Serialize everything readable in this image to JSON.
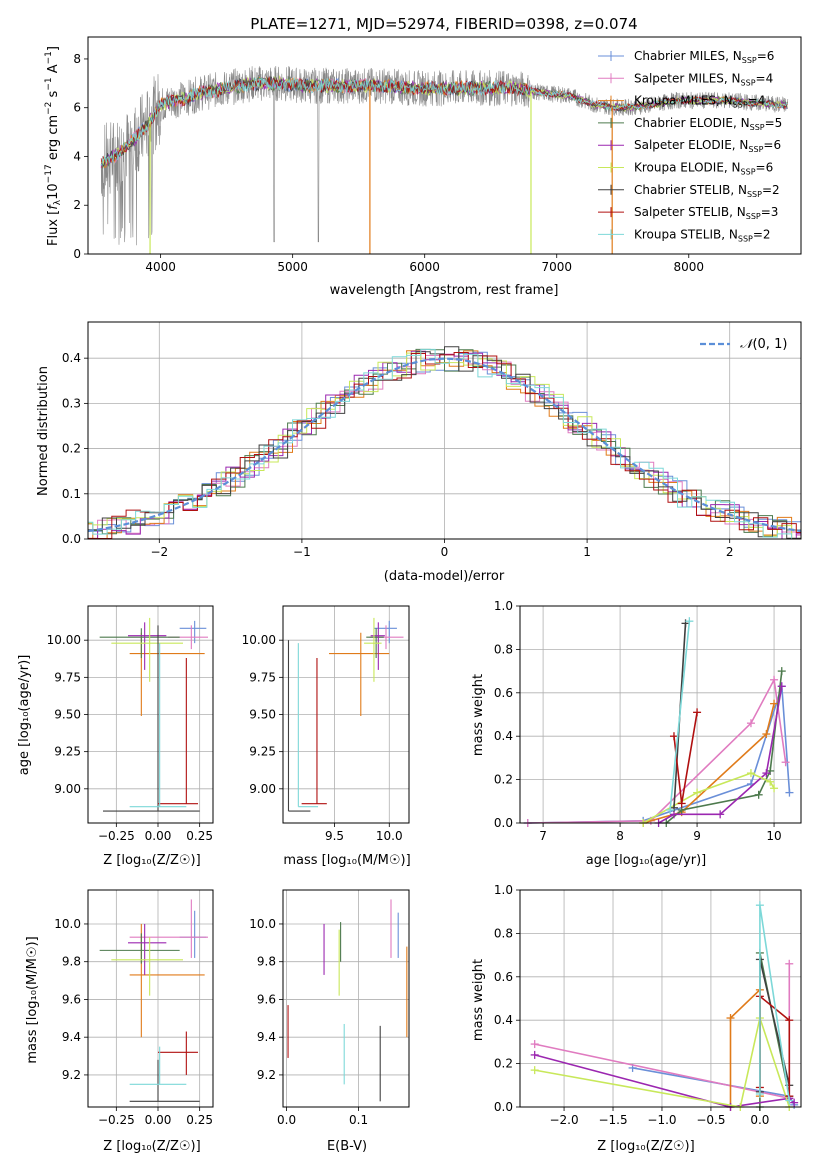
{
  "colors": {
    "chabrier_miles": "#6a8fd8",
    "salpeter_miles": "#e07bc0",
    "kroupa_miles": "#e07b1a",
    "chabrier_elodie": "#4d7a4d",
    "salpeter_elodie": "#9b27b0",
    "kroupa_elodie": "#c8e85a",
    "chabrier_stelib": "#404040",
    "salpeter_stelib": "#b01010",
    "kroupa_stelib": "#7dd8d8",
    "data_grey": "#888888",
    "normal_dash": "#5b8fd8"
  },
  "chart_data": [
    {
      "id": "spectrum",
      "type": "line",
      "title": "PLATE=1271, MJD=52974, FIBERID=0398, z=0.074",
      "xlabel": "wavelength [Angstrom, rest frame]",
      "ylabel": "Flux [fλ10⁻¹⁷ erg cm⁻² s⁻¹ A⁻¹]",
      "xlim": [
        3450,
        8850
      ],
      "ylim": [
        0,
        8.9
      ],
      "xticks": [
        "4000",
        "5000",
        "6000",
        "7000",
        "8000"
      ],
      "yticks": [
        "0",
        "2",
        "4",
        "6",
        "8"
      ],
      "grid": false,
      "legend_position": "top-right",
      "legend": [
        {
          "key": "chabrier_miles",
          "label": "Chabrier MILES, N",
          "sub": "SSP",
          "suffix": "=6"
        },
        {
          "key": "salpeter_miles",
          "label": "Salpeter MILES, N",
          "sub": "SSP",
          "suffix": "=4"
        },
        {
          "key": "kroupa_miles",
          "label": "Kroupa MILES, N",
          "sub": "SSP",
          "suffix": "=4"
        },
        {
          "key": "chabrier_elodie",
          "label": "Chabrier ELODIE, N",
          "sub": "SSP",
          "suffix": "=5"
        },
        {
          "key": "salpeter_elodie",
          "label": "Salpeter ELODIE, N",
          "sub": "SSP",
          "suffix": "=6"
        },
        {
          "key": "kroupa_elodie",
          "label": "Kroupa ELODIE, N",
          "sub": "SSP",
          "suffix": "=6"
        },
        {
          "key": "chabrier_stelib",
          "label": "Chabrier STELIB, N",
          "sub": "SSP",
          "suffix": "=2"
        },
        {
          "key": "salpeter_stelib",
          "label": "Salpeter STELIB, N",
          "sub": "SSP",
          "suffix": "=3"
        },
        {
          "key": "kroupa_stelib",
          "label": "Kroupa STELIB, N",
          "sub": "SSP",
          "suffix": "=2"
        }
      ],
      "continuum": {
        "x": [
          3550,
          3700,
          3800,
          3900,
          4000,
          4100,
          4200,
          4300,
          4500,
          4700,
          4900,
          5100,
          5300,
          5500,
          5700,
          5900,
          6100,
          6300,
          6500,
          6700,
          6900,
          7100,
          7300,
          7500,
          7700,
          7900,
          8100,
          8300,
          8500,
          8750
        ],
        "y": [
          3.7,
          4.2,
          4.7,
          5.3,
          6.1,
          6.3,
          6.4,
          6.6,
          6.8,
          7.0,
          7.0,
          6.9,
          6.9,
          6.9,
          6.9,
          6.8,
          6.8,
          6.8,
          6.8,
          6.8,
          6.6,
          6.5,
          6.1,
          6.0,
          6.1,
          6.3,
          6.3,
          6.3,
          6.2,
          6.1
        ]
      }
    },
    {
      "id": "residuals",
      "type": "histogram",
      "xlabel": "(data-model)/error",
      "ylabel": "Normed distribution",
      "xlim": [
        -2.5,
        2.5
      ],
      "ylim": [
        0,
        0.48
      ],
      "xticks": [
        "-2",
        "-1",
        "0",
        "1",
        "2"
      ],
      "yticks": [
        "0.0",
        "0.1",
        "0.2",
        "0.3",
        "0.4"
      ],
      "grid": true,
      "legend_position": "top-right",
      "legend_label": "N(0,1)",
      "series_order": [
        "chabrier_miles",
        "salpeter_miles",
        "kroupa_miles",
        "chabrier_elodie",
        "salpeter_elodie",
        "kroupa_elodie",
        "chabrier_stelib",
        "salpeter_stelib",
        "kroupa_stelib"
      ]
    },
    {
      "id": "age_vs_Z",
      "type": "errorbar",
      "xlabel": "Z [log₁₀(Z/Z☉)]",
      "ylabel": "age  [log₁₀(age/yr)]",
      "xlim": [
        -0.42,
        0.33
      ],
      "ylim": [
        8.77,
        10.23
      ],
      "xticks": [
        "-0.25",
        "0.00",
        "0.25"
      ],
      "yticks": [
        "9.00",
        "9.25",
        "9.50",
        "9.75",
        "10.00"
      ],
      "grid": true,
      "points": [
        {
          "s": "chabrier_miles",
          "x": 0.22,
          "y": 10.08,
          "xe": [
            0.13,
            0.29
          ],
          "ye": [
            9.98,
            10.13
          ]
        },
        {
          "s": "salpeter_miles",
          "x": 0.2,
          "y": 10.02,
          "xe": [
            0.06,
            0.3
          ],
          "ye": [
            9.94,
            10.1
          ]
        },
        {
          "s": "kroupa_miles",
          "x": -0.1,
          "y": 9.91,
          "xe": [
            -0.17,
            0.28
          ],
          "ye": [
            9.49,
            10.05
          ]
        },
        {
          "s": "chabrier_elodie",
          "x": -0.1,
          "y": 10.02,
          "xe": [
            -0.35,
            0.13
          ],
          "ye": [
            9.88,
            10.08
          ]
        },
        {
          "s": "salpeter_elodie",
          "x": -0.08,
          "y": 10.03,
          "xe": [
            -0.18,
            0.05
          ],
          "ye": [
            9.8,
            10.12
          ]
        },
        {
          "s": "kroupa_elodie",
          "x": -0.05,
          "y": 9.98,
          "xe": [
            -0.28,
            0.15
          ],
          "ye": [
            9.72,
            10.15
          ]
        },
        {
          "s": "chabrier_stelib",
          "x": 0.0,
          "y": 8.85,
          "xe": [
            -0.33,
            0.25
          ],
          "ye": [
            8.85,
            10.1
          ]
        },
        {
          "s": "salpeter_stelib",
          "x": 0.17,
          "y": 8.9,
          "xe": [
            0.0,
            0.24
          ],
          "ye": [
            8.9,
            9.88
          ]
        },
        {
          "s": "kroupa_stelib",
          "x": 0.01,
          "y": 8.88,
          "xe": [
            -0.17,
            0.17
          ],
          "ye": [
            8.88,
            9.98
          ]
        }
      ]
    },
    {
      "id": "age_vs_mass",
      "type": "errorbar",
      "xlabel": "mass [log₁₀(M/M☉)]",
      "ylabel": "",
      "xlim": [
        9.03,
        10.18
      ],
      "ylim": [
        8.77,
        10.23
      ],
      "xticks": [
        "9.5",
        "10.0"
      ],
      "yticks": [
        "9.00",
        "9.25",
        "9.50",
        "9.75",
        "10.00"
      ],
      "grid": true,
      "points": [
        {
          "s": "chabrier_miles",
          "x": 10.0,
          "y": 10.08,
          "xe": [
            9.86,
            10.07
          ],
          "ye": [
            9.98,
            10.13
          ]
        },
        {
          "s": "salpeter_miles",
          "x": 9.97,
          "y": 10.02,
          "xe": [
            9.82,
            10.13
          ],
          "ye": [
            9.94,
            10.1
          ]
        },
        {
          "s": "kroupa_miles",
          "x": 9.74,
          "y": 9.91,
          "xe": [
            9.45,
            10.0
          ],
          "ye": [
            9.49,
            10.05
          ]
        },
        {
          "s": "chabrier_elodie",
          "x": 9.88,
          "y": 10.02,
          "xe": [
            9.79,
            9.95
          ],
          "ye": [
            9.88,
            10.08
          ]
        },
        {
          "s": "salpeter_elodie",
          "x": 9.9,
          "y": 10.03,
          "xe": [
            9.83,
            9.96
          ],
          "ye": [
            9.8,
            10.12
          ]
        },
        {
          "s": "kroupa_elodie",
          "x": 9.86,
          "y": 9.98,
          "xe": [
            9.77,
            9.93
          ],
          "ye": [
            9.72,
            10.15
          ]
        },
        {
          "s": "chabrier_stelib",
          "x": 9.08,
          "y": 8.85,
          "xe": [
            9.08,
            9.28
          ],
          "ye": [
            8.85,
            10.0
          ]
        },
        {
          "s": "salpeter_stelib",
          "x": 9.34,
          "y": 8.9,
          "xe": [
            9.2,
            9.43
          ],
          "ye": [
            8.9,
            9.88
          ]
        },
        {
          "s": "kroupa_stelib",
          "x": 9.17,
          "y": 8.88,
          "xe": [
            9.17,
            9.35
          ],
          "ye": [
            8.88,
            9.98
          ]
        }
      ]
    },
    {
      "id": "massweight_vs_age",
      "type": "line",
      "xlabel": "age  [log₁₀(age/yr)]",
      "ylabel": "mass weight",
      "xlim": [
        6.7,
        10.35
      ],
      "ylim": [
        0,
        1.0
      ],
      "xticks": [
        "7",
        "8",
        "9",
        "10"
      ],
      "yticks": [
        "0.0",
        "0.2",
        "0.4",
        "0.6",
        "0.8",
        "1.0"
      ],
      "grid": true,
      "series": [
        {
          "s": "chabrier_miles",
          "x": [
            6.8,
            8.3,
            9.7,
            10.1,
            10.2
          ],
          "y": [
            0.0,
            0.01,
            0.18,
            0.63,
            0.14
          ]
        },
        {
          "s": "salpeter_miles",
          "x": 6.8,
          "x_list": [
            6.8,
            8.4,
            9.7,
            10.0,
            10.15
          ],
          "y": [
            0.0,
            0.01,
            0.46,
            0.66,
            0.28
          ]
        },
        {
          "s": "kroupa_miles",
          "x": [
            8.3,
            8.8,
            9.9,
            10.0
          ],
          "y": [
            0.0,
            0.05,
            0.41,
            0.55
          ]
        },
        {
          "s": "chabrier_elodie",
          "x": [
            8.6,
            8.8,
            9.8,
            9.95,
            10.1
          ],
          "y": [
            0.0,
            0.06,
            0.13,
            0.24,
            0.7
          ]
        },
        {
          "s": "salpeter_elodie",
          "x": [
            8.5,
            8.7,
            9.3,
            9.9,
            10.1
          ],
          "y": [
            0.0,
            0.04,
            0.04,
            0.23,
            0.63
          ]
        },
        {
          "s": "kroupa_elodie",
          "x": [
            8.3,
            9.0,
            9.7,
            9.95,
            10.0
          ],
          "y": [
            0.0,
            0.14,
            0.23,
            0.19,
            0.16
          ]
        },
        {
          "s": "chabrier_stelib",
          "x": [
            8.7,
            8.85
          ],
          "y": [
            0.07,
            0.92
          ]
        },
        {
          "s": "salpeter_stelib",
          "x": [
            8.7,
            8.8,
            9.0
          ],
          "y": [
            0.4,
            0.09,
            0.51
          ]
        },
        {
          "s": "kroupa_stelib",
          "x": [
            8.65,
            8.9
          ],
          "y": [
            0.06,
            0.93
          ]
        }
      ]
    },
    {
      "id": "mass_vs_Z",
      "type": "errorbar",
      "xlabel": "Z [log₁₀(Z/Z☉)]",
      "ylabel": "mass [log₁₀(M/M☉)]",
      "xlim": [
        -0.42,
        0.33
      ],
      "ylim": [
        9.03,
        10.18
      ],
      "xticks": [
        "-0.25",
        "0.00",
        "0.25"
      ],
      "yticks": [
        "9.2",
        "9.4",
        "9.6",
        "9.8",
        "10.0"
      ],
      "grid": true,
      "points": [
        {
          "s": "chabrier_miles",
          "x": 0.22,
          "y": 9.93,
          "xe": [
            0.13,
            0.29
          ],
          "ye": [
            9.82,
            10.07
          ]
        },
        {
          "s": "salpeter_miles",
          "x": 0.2,
          "y": 9.93,
          "xe": [
            -0.17,
            0.3
          ],
          "ye": [
            9.82,
            10.13
          ]
        },
        {
          "s": "kroupa_miles",
          "x": -0.1,
          "y": 9.73,
          "xe": [
            -0.17,
            0.28
          ],
          "ye": [
            9.4,
            10.0
          ]
        },
        {
          "s": "chabrier_elodie",
          "x": -0.1,
          "y": 9.86,
          "xe": [
            -0.35,
            0.13
          ],
          "ye": [
            9.79,
            9.95
          ]
        },
        {
          "s": "salpeter_elodie",
          "x": -0.08,
          "y": 9.9,
          "xe": [
            -0.18,
            0.05
          ],
          "ye": [
            9.73,
            10.0
          ]
        },
        {
          "s": "kroupa_elodie",
          "x": -0.05,
          "y": 9.81,
          "xe": [
            -0.28,
            0.15
          ],
          "ye": [
            9.62,
            9.93
          ]
        },
        {
          "s": "chabrier_stelib",
          "x": 0.0,
          "y": 9.06,
          "xe": [
            -0.17,
            0.25
          ],
          "ye": [
            9.06,
            9.28
          ]
        },
        {
          "s": "salpeter_stelib",
          "x": 0.17,
          "y": 9.32,
          "xe": [
            0.0,
            0.24
          ],
          "ye": [
            9.2,
            9.43
          ]
        },
        {
          "s": "kroupa_stelib",
          "x": 0.01,
          "y": 9.15,
          "xe": [
            -0.17,
            0.17
          ],
          "ye": [
            9.15,
            9.35
          ]
        }
      ]
    },
    {
      "id": "mass_vs_ebv",
      "type": "errorbar",
      "xlabel": "E(B-V)",
      "ylabel": "",
      "xlim": [
        -0.005,
        0.17
      ],
      "ylim": [
        9.03,
        10.18
      ],
      "xticks": [
        "0.0",
        "0.1"
      ],
      "yticks": [
        "9.2",
        "9.4",
        "9.6",
        "9.8",
        "10.0"
      ],
      "grid": true,
      "points": [
        {
          "s": "chabrier_miles",
          "x": 0.155,
          "y": 9.93,
          "ye": [
            9.82,
            10.06
          ]
        },
        {
          "s": "salpeter_miles",
          "x": 0.145,
          "y": 9.97,
          "ye": [
            9.82,
            10.13
          ]
        },
        {
          "s": "kroupa_miles",
          "x": 0.167,
          "y": 9.73,
          "ye": [
            9.4,
            9.88
          ]
        },
        {
          "s": "chabrier_elodie",
          "x": 0.075,
          "y": 9.9,
          "ye": [
            9.8,
            10.01
          ]
        },
        {
          "s": "salpeter_elodie",
          "x": 0.052,
          "y": 9.86,
          "ye": [
            9.73,
            10.0
          ]
        },
        {
          "s": "kroupa_elodie",
          "x": 0.073,
          "y": 9.8,
          "ye": [
            9.62,
            9.97
          ]
        },
        {
          "s": "chabrier_stelib",
          "x": 0.13,
          "y": 9.3,
          "ye": [
            9.06,
            9.46
          ]
        },
        {
          "s": "salpeter_stelib",
          "x": 0.002,
          "y": 9.43,
          "ye": [
            9.29,
            9.57
          ]
        },
        {
          "s": "kroupa_stelib",
          "x": 0.08,
          "y": 9.3,
          "ye": [
            9.15,
            9.47
          ]
        }
      ]
    },
    {
      "id": "massweight_vs_Z",
      "type": "line",
      "xlabel": "Z [log₁₀(Z/Z☉)]",
      "ylabel": "mass weight",
      "xlim": [
        -2.45,
        0.42
      ],
      "ylim": [
        0,
        1.0
      ],
      "xticks": [
        "-2.0",
        "-1.5",
        "-1.0",
        "-0.5",
        "0.0"
      ],
      "yticks": [
        "0.0",
        "0.2",
        "0.4",
        "0.6",
        "0.8",
        "1.0"
      ],
      "grid": true,
      "series": [
        {
          "s": "chabrier_miles",
          "x": [
            -1.3,
            0.3,
            0.35
          ],
          "y": [
            0.18,
            0.05,
            0.01
          ]
        },
        {
          "s": "salpeter_miles",
          "x": [
            -2.3,
            0.3,
            0.3
          ],
          "y": [
            0.29,
            0.04,
            0.66
          ]
        },
        {
          "s": "kroupa_miles",
          "x": [
            -0.3,
            -0.3,
            0.0,
            0.0
          ],
          "y": [
            0.0,
            0.41,
            0.54,
            0.05
          ]
        },
        {
          "s": "chabrier_elodie",
          "x": [
            0.0,
            0.0,
            0.3
          ],
          "y": [
            0.0,
            0.71,
            0.05
          ]
        },
        {
          "s": "salpeter_elodie",
          "x": [
            -2.3,
            -0.3,
            0.3,
            0.35
          ],
          "y": [
            0.24,
            0.0,
            0.04,
            0.02
          ]
        },
        {
          "s": "kroupa_elodie",
          "x": [
            -2.3,
            -0.2,
            0.0,
            0.3
          ],
          "y": [
            0.17,
            0.0,
            0.41,
            0.0
          ]
        },
        {
          "s": "chabrier_stelib",
          "x": [
            0.0,
            0.0,
            0.3
          ],
          "y": [
            0.07,
            0.68,
            0.1
          ]
        },
        {
          "s": "salpeter_stelib",
          "x": [
            0.0,
            0.0,
            0.3,
            0.3
          ],
          "y": [
            0.09,
            0.51,
            0.4,
            0.05
          ]
        },
        {
          "s": "kroupa_stelib",
          "x": [
            0.0,
            0.0,
            0.3
          ],
          "y": [
            0.06,
            0.93,
            0.03
          ]
        }
      ]
    }
  ]
}
